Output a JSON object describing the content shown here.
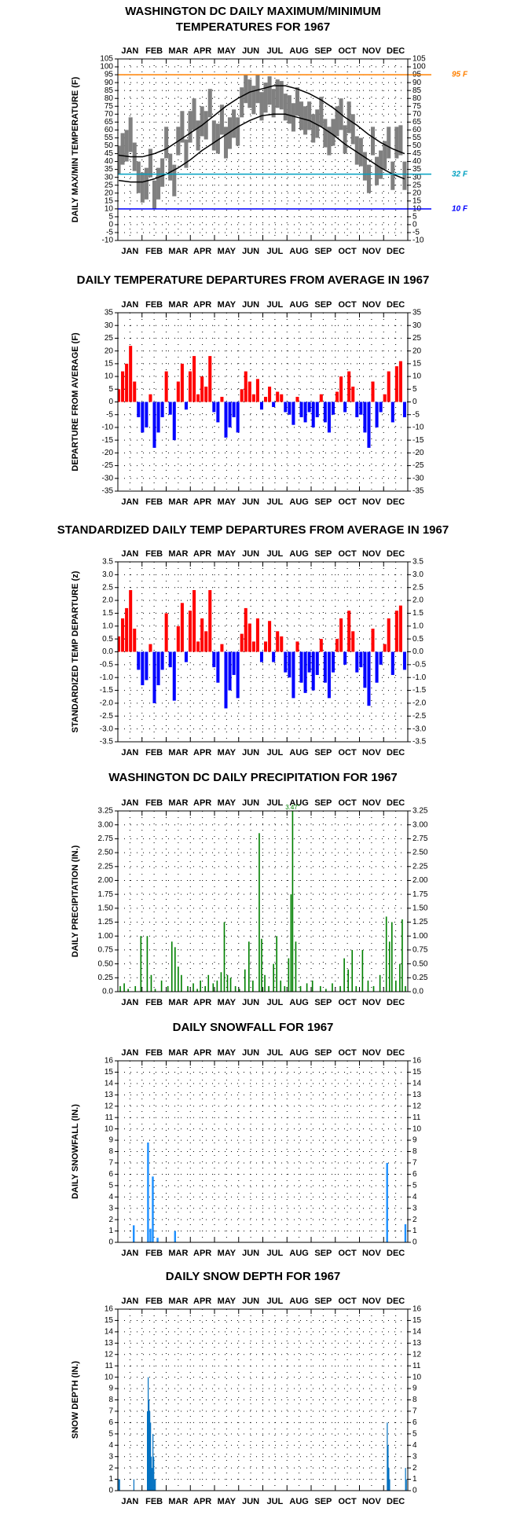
{
  "chart_data": [
    {
      "type": "range",
      "title": [
        "WASHINGTON DC DAILY MAXIMUM/MINIMUM",
        "TEMPERATURES FOR 1967"
      ],
      "y_label": "DAILY MAX/MIN TEMPERATURE (F)",
      "categories": [
        "JAN",
        "FEB",
        "MAR",
        "APR",
        "MAY",
        "JUN",
        "JUL",
        "AUG",
        "SEP",
        "OCT",
        "NOV",
        "DEC"
      ],
      "xlim": [
        0,
        365
      ],
      "ylim": [
        -10,
        105
      ],
      "yticks": [
        -10,
        -5,
        0,
        5,
        10,
        15,
        20,
        25,
        30,
        35,
        40,
        45,
        50,
        55,
        60,
        65,
        70,
        75,
        80,
        85,
        90,
        95,
        100,
        105
      ],
      "grid": true,
      "color": "#808080",
      "normal_color": "#000000",
      "x": [
        1,
        6,
        11,
        16,
        21,
        26,
        31,
        36,
        41,
        46,
        51,
        56,
        61,
        66,
        71,
        76,
        81,
        86,
        91,
        96,
        101,
        106,
        111,
        116,
        121,
        126,
        131,
        136,
        141,
        146,
        151,
        156,
        161,
        166,
        171,
        176,
        181,
        186,
        191,
        196,
        201,
        206,
        211,
        216,
        221,
        226,
        231,
        236,
        241,
        246,
        251,
        256,
        261,
        266,
        271,
        276,
        281,
        286,
        291,
        296,
        301,
        306,
        311,
        316,
        321,
        326,
        331,
        336,
        341,
        346,
        351,
        356,
        361
      ],
      "high": [
        50,
        58,
        60,
        68,
        52,
        40,
        33,
        36,
        48,
        28,
        36,
        42,
        62,
        45,
        38,
        62,
        72,
        54,
        72,
        80,
        66,
        75,
        72,
        86,
        66,
        64,
        76,
        62,
        68,
        73,
        68,
        87,
        95,
        92,
        88,
        95,
        84,
        90,
        94,
        86,
        92,
        91,
        83,
        82,
        77,
        87,
        78,
        75,
        78,
        70,
        73,
        81,
        67,
        62,
        67,
        75,
        80,
        63,
        78,
        70,
        56,
        55,
        46,
        38,
        62,
        43,
        47,
        53,
        62,
        40,
        62,
        63,
        40
      ],
      "low": [
        32,
        38,
        40,
        46,
        34,
        20,
        14,
        16,
        30,
        10,
        16,
        24,
        42,
        28,
        18,
        44,
        52,
        36,
        52,
        60,
        47,
        56,
        54,
        68,
        47,
        45,
        57,
        42,
        48,
        55,
        50,
        68,
        77,
        74,
        70,
        77,
        66,
        71,
        76,
        68,
        74,
        73,
        66,
        64,
        59,
        69,
        60,
        57,
        60,
        52,
        55,
        62,
        49,
        44,
        50,
        56,
        60,
        45,
        58,
        51,
        38,
        37,
        28,
        20,
        44,
        25,
        29,
        35,
        42,
        22,
        42,
        44,
        22
      ],
      "normal_x": [
        1,
        16,
        31,
        46,
        61,
        76,
        91,
        106,
        121,
        136,
        151,
        166,
        181,
        196,
        211,
        226,
        241,
        256,
        271,
        286,
        301,
        316,
        331,
        346,
        361
      ],
      "normal_high": [
        44,
        43,
        43,
        45,
        48,
        53,
        58,
        63,
        69,
        75,
        80,
        84,
        86,
        88,
        88,
        86,
        83,
        79,
        74,
        68,
        63,
        57,
        52,
        48,
        45
      ],
      "normal_low": [
        28,
        27,
        27,
        29,
        32,
        36,
        41,
        47,
        52,
        57,
        62,
        66,
        69,
        70,
        70,
        68,
        66,
        62,
        57,
        51,
        46,
        41,
        36,
        32,
        29
      ],
      "ref_lines": [
        {
          "value": 95,
          "label": "95 F",
          "color": "#ff8000"
        },
        {
          "value": 32,
          "label": "32 F",
          "color": "#00a0c0"
        },
        {
          "value": 10,
          "label": "10 F",
          "color": "#0000ff"
        }
      ]
    },
    {
      "type": "bar",
      "title": "DAILY TEMPERATURE DEPARTURES FROM AVERAGE IN 1967",
      "y_label": "DEPARTURE FROM AVERAGE (F)",
      "categories": [
        "JAN",
        "FEB",
        "MAR",
        "APR",
        "MAY",
        "JUN",
        "JUL",
        "AUG",
        "SEP",
        "OCT",
        "NOV",
        "DEC"
      ],
      "xlim": [
        0,
        365
      ],
      "ylim": [
        -35,
        35
      ],
      "yticks": [
        -35,
        -30,
        -25,
        -20,
        -15,
        -10,
        -5,
        0,
        5,
        10,
        15,
        20,
        25,
        30,
        35
      ],
      "grid": true,
      "color_positive": "#ff0000",
      "color_negative": "#0000ff",
      "x": [
        1,
        6,
        11,
        16,
        21,
        26,
        31,
        36,
        41,
        46,
        51,
        56,
        61,
        66,
        71,
        76,
        81,
        86,
        91,
        96,
        101,
        106,
        111,
        116,
        121,
        126,
        131,
        136,
        141,
        146,
        151,
        156,
        161,
        166,
        171,
        176,
        181,
        186,
        191,
        196,
        201,
        206,
        211,
        216,
        221,
        226,
        231,
        236,
        241,
        246,
        251,
        256,
        261,
        266,
        271,
        276,
        281,
        286,
        291,
        296,
        301,
        306,
        311,
        316,
        321,
        326,
        331,
        336,
        341,
        346,
        351,
        356,
        361
      ],
      "values": [
        5,
        12,
        15,
        22,
        8,
        -6,
        -12,
        -10,
        3,
        -18,
        -12,
        -6,
        12,
        -5,
        -15,
        8,
        15,
        -3,
        12,
        18,
        3,
        10,
        6,
        18,
        -4,
        -8,
        2,
        -14,
        -10,
        -6,
        -12,
        5,
        12,
        8,
        3,
        9,
        -3,
        2,
        6,
        -2,
        4,
        3,
        -4,
        -5,
        -9,
        2,
        -6,
        -8,
        -4,
        -10,
        -6,
        3,
        -8,
        -12,
        -5,
        4,
        10,
        -4,
        12,
        6,
        -6,
        -5,
        -12,
        -18,
        8,
        -10,
        -4,
        3,
        12,
        -8,
        14,
        16,
        -6
      ]
    },
    {
      "type": "bar",
      "title": "STANDARDIZED DAILY TEMP DEPARTURES FROM AVERAGE IN 1967",
      "y_label": "STANDARDIZED TEMP DEPARTURE (z)",
      "categories": [
        "JAN",
        "FEB",
        "MAR",
        "APR",
        "MAY",
        "JUN",
        "JUL",
        "AUG",
        "SEP",
        "OCT",
        "NOV",
        "DEC"
      ],
      "xlim": [
        0,
        365
      ],
      "ylim": [
        -3.5,
        3.5
      ],
      "yticks": [
        -3.5,
        {
          "value": -3,
          "label": "-3.0"
        },
        -2.5,
        {
          "value": -2,
          "label": "-2.0"
        },
        -1.5,
        {
          "value": -1,
          "label": "-1.0"
        },
        -0.5,
        {
          "value": 0,
          "label": "0.0"
        },
        0.5,
        {
          "value": 1,
          "label": "1.0"
        },
        1.5,
        {
          "value": 2,
          "label": "2.0"
        },
        2.5,
        {
          "value": 3,
          "label": "3.0"
        },
        3.5
      ],
      "grid": true,
      "color_positive": "#ff0000",
      "color_negative": "#0000ff",
      "x": [
        1,
        6,
        11,
        16,
        21,
        26,
        31,
        36,
        41,
        46,
        51,
        56,
        61,
        66,
        71,
        76,
        81,
        86,
        91,
        96,
        101,
        106,
        111,
        116,
        121,
        126,
        131,
        136,
        141,
        146,
        151,
        156,
        161,
        166,
        171,
        176,
        181,
        186,
        191,
        196,
        201,
        206,
        211,
        216,
        221,
        226,
        231,
        236,
        241,
        246,
        251,
        256,
        261,
        266,
        271,
        276,
        281,
        286,
        291,
        296,
        301,
        306,
        311,
        316,
        321,
        326,
        331,
        336,
        341,
        346,
        351,
        356,
        361
      ],
      "values": [
        0.6,
        1.3,
        1.7,
        2.4,
        0.9,
        -0.7,
        -1.3,
        -1.1,
        0.3,
        -2.0,
        -1.3,
        -0.7,
        1.5,
        -0.6,
        -1.9,
        1.0,
        1.9,
        -0.4,
        1.6,
        2.4,
        0.4,
        1.3,
        0.8,
        2.4,
        -0.6,
        -1.2,
        0.3,
        -2.2,
        -1.5,
        -0.9,
        -1.8,
        0.7,
        1.7,
        1.1,
        0.4,
        1.3,
        -0.4,
        0.4,
        1.2,
        -0.4,
        0.8,
        0.6,
        -0.8,
        -1.0,
        -1.8,
        0.4,
        -1.2,
        -1.6,
        -0.8,
        -1.5,
        -0.9,
        0.5,
        -1.2,
        -1.8,
        -0.8,
        0.5,
        1.3,
        -0.5,
        1.6,
        0.8,
        -0.8,
        -0.6,
        -1.4,
        -2.1,
        0.9,
        -1.2,
        -0.5,
        0.3,
        1.3,
        -0.9,
        1.6,
        1.8,
        -0.7
      ]
    },
    {
      "type": "bar",
      "title": "WASHINGTON DC DAILY PRECIPITATION FOR 1967",
      "y_label": "DAILY PRECIPITATION (IN.)",
      "categories": [
        "JAN",
        "FEB",
        "MAR",
        "APR",
        "MAY",
        "JUN",
        "JUL",
        "AUG",
        "SEP",
        "OCT",
        "NOV",
        "DEC"
      ],
      "xlim": [
        0,
        365
      ],
      "ylim": [
        0,
        3.25
      ],
      "yticks": [
        {
          "value": 0,
          "label": "0.0"
        },
        0.25,
        {
          "value": 0.5,
          "label": "0.50"
        },
        0.75,
        {
          "value": 1,
          "label": "1.00"
        },
        1.25,
        {
          "value": 1.5,
          "label": "1.50"
        },
        1.75,
        {
          "value": 2,
          "label": "2.00"
        },
        2.25,
        {
          "value": 2.5,
          "label": "2.50"
        },
        2.75,
        {
          "value": 3,
          "label": "3.00"
        },
        3.25
      ],
      "grid": true,
      "color": "#008000",
      "x": [
        3,
        8,
        13,
        22,
        29,
        37,
        42,
        47,
        55,
        63,
        68,
        72,
        76,
        80,
        88,
        95,
        100,
        104,
        110,
        114,
        120,
        125,
        130,
        134,
        138,
        142,
        148,
        153,
        160,
        165,
        170,
        178,
        181,
        185,
        190,
        196,
        200,
        205,
        210,
        215,
        218,
        220,
        224,
        230,
        238,
        245,
        255,
        262,
        270,
        280,
        285,
        290,
        295,
        300,
        308,
        315,
        322,
        330,
        338,
        342,
        345,
        350,
        355,
        358,
        362
      ],
      "values": [
        0.1,
        0.15,
        0.05,
        0.1,
        1.0,
        1.0,
        0.3,
        0.05,
        0.2,
        0.1,
        0.9,
        0.8,
        0.45,
        0.3,
        0.1,
        0.15,
        0.05,
        0.2,
        0.1,
        0.3,
        0.15,
        0.2,
        0.35,
        1.25,
        0.3,
        0.25,
        0.1,
        0.05,
        0.4,
        0.9,
        0.2,
        2.85,
        0.95,
        0.3,
        0.1,
        0.5,
        1.0,
        0.2,
        0.1,
        0.6,
        1.75,
        3.47,
        0.9,
        0.1,
        0.15,
        0.2,
        0.1,
        0.05,
        0.15,
        0.1,
        0.6,
        0.4,
        0.75,
        0.1,
        0.75,
        0.2,
        0.1,
        0.3,
        1.35,
        0.9,
        1.25,
        0.2,
        0.5,
        1.3,
        0.1
      ],
      "value_labels": [
        null,
        null,
        null,
        null,
        null,
        null,
        null,
        null,
        null,
        null,
        null,
        null,
        null,
        null,
        null,
        null,
        null,
        null,
        null,
        null,
        null,
        null,
        null,
        null,
        null,
        null,
        null,
        null,
        null,
        null,
        null,
        null,
        null,
        null,
        null,
        null,
        null,
        null,
        null,
        null,
        null,
        "3.47\"",
        null,
        null,
        null,
        null,
        null,
        null,
        null,
        null,
        null,
        null,
        null,
        null,
        null,
        null,
        null,
        null,
        null,
        null,
        null,
        null,
        null,
        null,
        null
      ]
    },
    {
      "type": "bar",
      "title": "DAILY SNOWFALL FOR 1967",
      "y_label": "DAILY SNOWFALL (IN.)",
      "categories": [
        "JAN",
        "FEB",
        "MAR",
        "APR",
        "MAY",
        "JUN",
        "JUL",
        "AUG",
        "SEP",
        "OCT",
        "NOV",
        "DEC"
      ],
      "xlim": [
        0,
        365
      ],
      "ylim": [
        0,
        16
      ],
      "yticks": [
        0,
        1,
        2,
        3,
        4,
        5,
        6,
        7,
        8,
        9,
        10,
        11,
        12,
        13,
        14,
        15,
        16
      ],
      "grid": true,
      "color": "#1e90ff",
      "x": [
        20,
        38,
        41,
        44,
        50,
        72,
        339,
        362
      ],
      "values": [
        1.5,
        8.8,
        1.2,
        5.8,
        0.4,
        1.0,
        7.0,
        1.6
      ]
    },
    {
      "type": "bar",
      "title": "DAILY SNOW DEPTH FOR 1967",
      "y_label": "SNOW DEPTH (IN.)",
      "categories": [
        "JAN",
        "FEB",
        "MAR",
        "APR",
        "MAY",
        "JUN",
        "JUL",
        "AUG",
        "SEP",
        "OCT",
        "NOV",
        "DEC"
      ],
      "xlim": [
        0,
        365
      ],
      "ylim": [
        0,
        16
      ],
      "yticks": [
        0,
        1,
        2,
        3,
        4,
        5,
        6,
        7,
        8,
        9,
        10,
        11,
        12,
        13,
        14,
        15,
        16
      ],
      "grid": true,
      "color": "#0070c0",
      "x": [
        1,
        2,
        20,
        37,
        38,
        39,
        40,
        41,
        42,
        43,
        44,
        45,
        46,
        47,
        339,
        340,
        341,
        342,
        362,
        363
      ],
      "values": [
        1.0,
        1.0,
        1.0,
        7.0,
        10.0,
        8.0,
        7.0,
        6.0,
        3.0,
        2.0,
        5.0,
        3.0,
        1.0,
        1.0,
        6.0,
        4.0,
        2.0,
        1.0,
        2.0,
        1.0
      ]
    }
  ]
}
